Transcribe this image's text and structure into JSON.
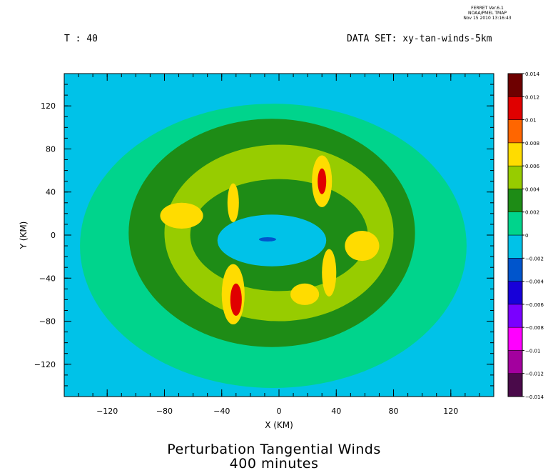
{
  "stamp": {
    "line1": "FERRET Ver.6.1",
    "line2": "NOAA/PMEL TMAP",
    "line3": "Nov 15 2010 13:16:43"
  },
  "header": {
    "time_label": "T : 40",
    "dataset_label": "DATA SET: xy-tan-winds-5km"
  },
  "colors": {
    "-0.014": "#4a0a4a",
    "-0.012": "#a3009e",
    "-0.01": "#ff00ff",
    "-0.008": "#7a00ff",
    "-0.006": "#1700d9",
    "-0.004": "#0055cc",
    "-0.002": "#00c2e8",
    "0": "#00d48c",
    "0.002": "#1e8c16",
    "0.004": "#97cc00",
    "0.006": "#ffdc00",
    "0.008": "#ff6600",
    "0.01": "#e00000",
    "0.012": "#6e0000"
  },
  "chart_data": {
    "type": "heatmap",
    "title": "Perturbation Tangential Winds",
    "subtitle": "400 minutes",
    "xlabel": "X (KM)",
    "ylabel": "Y (KM)",
    "xlim": [
      -150,
      150
    ],
    "ylim": [
      -150,
      150
    ],
    "x_ticks": [
      -120,
      -80,
      -40,
      0,
      40,
      80,
      120
    ],
    "y_ticks": [
      -120,
      -80,
      -40,
      0,
      40,
      80,
      120
    ],
    "colorbar": {
      "levels": [
        -0.014,
        -0.012,
        -0.01,
        -0.008,
        -0.006,
        -0.004,
        -0.002,
        0,
        0.002,
        0.004,
        0.006,
        0.008,
        0.01,
        0.012,
        0.014
      ],
      "tick_labels": [
        "-0.014",
        "-0.012",
        "-0.01",
        "-0.008",
        "-0.006",
        "-0.004",
        "-0.002",
        "0",
        "0.002",
        "0.004",
        "0.006",
        "0.008",
        "0.01",
        "0.012",
        "0.014"
      ]
    },
    "field_regions": [
      {
        "band": "0",
        "center": [
          -4,
          -10
        ],
        "radius_x": 135,
        "radius_y": 132
      },
      {
        "band": "0.002",
        "center": [
          -5,
          2
        ],
        "radius_x": 100,
        "radius_y": 106
      },
      {
        "band": "0.004",
        "center": [
          0,
          2
        ],
        "radius_x": 80,
        "radius_y": 82
      },
      {
        "band": "0.002",
        "center": [
          0,
          0
        ],
        "radius_x": 62,
        "radius_y": 52
      },
      {
        "band": "-0.002",
        "center": [
          -5,
          -5
        ],
        "radius_x": 38,
        "radius_y": 24
      },
      {
        "band": "-0.004",
        "center": [
          -8,
          -4
        ],
        "radius_x": 6,
        "radius_y": 2
      },
      {
        "band": "0.006",
        "center": [
          -68,
          18
        ],
        "radius_x": 15,
        "radius_y": 12
      },
      {
        "band": "0.006",
        "center": [
          -32,
          -55
        ],
        "radius_x": 8,
        "radius_y": 28
      },
      {
        "band": "0.01",
        "center": [
          -30,
          -60
        ],
        "radius_x": 4,
        "radius_y": 15
      },
      {
        "band": "0.006",
        "center": [
          30,
          50
        ],
        "radius_x": 7,
        "radius_y": 24
      },
      {
        "band": "0.01",
        "center": [
          30,
          50
        ],
        "radius_x": 3,
        "radius_y": 12
      },
      {
        "band": "0.006",
        "center": [
          -32,
          30
        ],
        "radius_x": 4,
        "radius_y": 18
      },
      {
        "band": "0.006",
        "center": [
          35,
          -35
        ],
        "radius_x": 5,
        "radius_y": 22
      },
      {
        "band": "0.006",
        "center": [
          18,
          -55
        ],
        "radius_x": 10,
        "radius_y": 10
      },
      {
        "band": "0.006",
        "center": [
          58,
          -10
        ],
        "radius_x": 12,
        "radius_y": 14
      }
    ]
  }
}
